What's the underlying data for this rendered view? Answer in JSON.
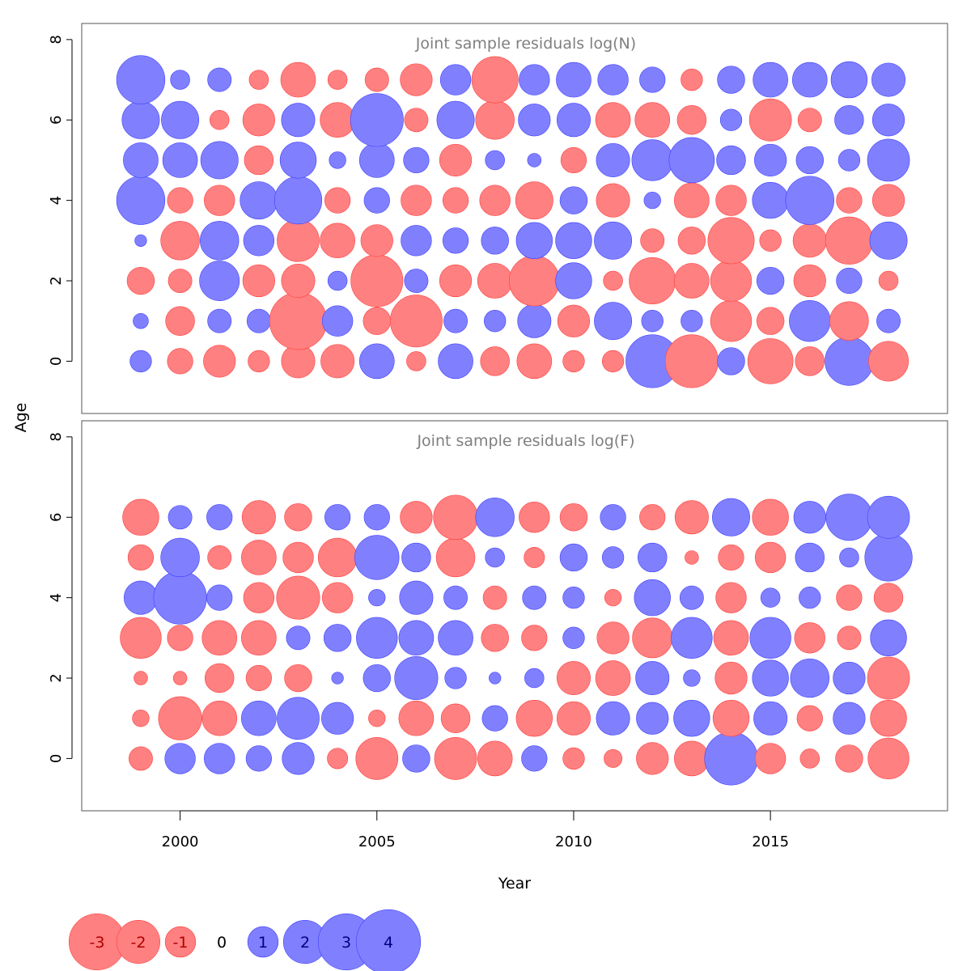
{
  "chart_data": {
    "type": "bubble",
    "xlabel": "Year",
    "ylabel": "Age",
    "x_ticks": [
      2000,
      2005,
      2010,
      2015
    ],
    "y_ticks": [
      0,
      2,
      4,
      6,
      8
    ],
    "xlim": [
      1997.5,
      2019.5
    ],
    "ylim": [
      -1.3,
      8.4
    ],
    "years": [
      1999,
      2000,
      2001,
      2002,
      2003,
      2004,
      2005,
      2006,
      2007,
      2008,
      2009,
      2010,
      2011,
      2012,
      2013,
      2014,
      2015,
      2016,
      2017,
      2018
    ],
    "colors": {
      "negative": "#ff8080",
      "positive": "#8080ff",
      "negative_edge": "#ff4040",
      "positive_edge": "#4040ff",
      "zero_label": "#000000"
    },
    "panels": [
      {
        "title": "Joint sample residuals log(N)",
        "ages": [
          0,
          1,
          2,
          3,
          4,
          5,
          6,
          7
        ],
        "residuals": [
          [
            0.5,
            -0.7,
            -1.1,
            -0.5,
            -1.2,
            -1.2,
            1.3,
            -0.4,
            1.3,
            -0.9,
            -1.3,
            -0.5,
            -0.5,
            3.0,
            -3.0,
            0.8,
            -2.2,
            -0.9,
            2.5,
            -1.7
          ],
          [
            0.25,
            -0.9,
            0.6,
            0.6,
            -3.5,
            1.0,
            -0.8,
            -2.9,
            0.6,
            0.5,
            1.2,
            -1.1,
            1.5,
            0.5,
            0.5,
            -1.8,
            -0.8,
            1.8,
            -1.6,
            0.6
          ],
          [
            -0.8,
            -0.6,
            1.7,
            -1.1,
            -1.2,
            0.4,
            -2.9,
            0.6,
            -1.1,
            -1.3,
            -2.7,
            1.4,
            -0.4,
            -2.3,
            -1.3,
            -1.8,
            0.8,
            -1.1,
            0.7,
            -0.4
          ],
          [
            0.15,
            -1.6,
            1.6,
            1.0,
            -1.9,
            -1.3,
            -1.1,
            1.0,
            0.7,
            0.8,
            1.4,
            1.4,
            1.5,
            -0.6,
            -0.8,
            -2.3,
            -0.5,
            -1.2,
            -2.4,
            1.5
          ],
          [
            2.5,
            -0.7,
            -1.0,
            1.5,
            2.4,
            -0.7,
            0.7,
            -1.0,
            -0.7,
            -1.0,
            -1.5,
            0.8,
            -1.2,
            0.3,
            -1.3,
            -1.0,
            1.4,
            2.5,
            -0.7,
            -1.1
          ],
          [
            1.3,
            1.3,
            1.5,
            -0.9,
            1.4,
            0.3,
            1.3,
            0.7,
            -1.1,
            0.4,
            0.2,
            -0.7,
            1.2,
            1.8,
            2.2,
            0.9,
            1.1,
            0.8,
            0.5,
            1.9
          ],
          [
            1.5,
            1.5,
            -0.4,
            -1.1,
            1.2,
            -1.3,
            3.0,
            -0.6,
            1.5,
            -1.6,
            1.1,
            1.2,
            -1.3,
            -1.3,
            -0.9,
            0.5,
            -1.9,
            -0.6,
            0.9,
            1.1
          ],
          [
            2.5,
            0.4,
            0.6,
            -0.4,
            -1.3,
            -0.4,
            -0.6,
            -1.1,
            1.0,
            -2.3,
            1.0,
            1.3,
            1.0,
            0.7,
            -0.5,
            0.8,
            1.3,
            1.3,
            1.4,
            1.2
          ]
        ]
      },
      {
        "title": "Joint sample residuals log(F)",
        "ages": [
          0,
          1,
          2,
          3,
          4,
          5,
          6
        ],
        "residuals": [
          [
            -0.6,
            1.0,
            1.0,
            0.7,
            1.1,
            -0.45,
            -1.9,
            0.8,
            -1.9,
            -1.3,
            0.7,
            -0.5,
            -0.35,
            -1.1,
            -1.3,
            3.0,
            -1.0,
            -0.4,
            -0.8,
            -1.8
          ],
          [
            -0.3,
            -2.0,
            -1.3,
            1.3,
            1.9,
            1.1,
            -0.3,
            -1.3,
            -0.9,
            0.7,
            -1.4,
            -1.2,
            1.2,
            1.1,
            1.4,
            -1.4,
            1.2,
            -0.7,
            1.1,
            -1.4
          ],
          [
            -0.2,
            -0.2,
            -0.9,
            -0.7,
            -0.8,
            0.15,
            0.8,
            2.0,
            0.5,
            0.15,
            0.4,
            -1.2,
            -1.3,
            1.2,
            0.3,
            -1.1,
            1.4,
            1.6,
            1.1,
            -1.9
          ],
          [
            -1.8,
            -0.7,
            -1.3,
            -1.3,
            0.6,
            0.8,
            1.8,
            1.3,
            1.3,
            -0.8,
            -0.7,
            0.5,
            -1.1,
            -1.7,
            1.8,
            -1.3,
            1.8,
            -1.0,
            -0.6,
            1.4
          ],
          [
            1.2,
            3.0,
            0.7,
            -1.0,
            -2.0,
            -1.0,
            0.3,
            1.2,
            0.6,
            -0.6,
            0.6,
            0.5,
            -0.3,
            1.4,
            0.6,
            -1.0,
            0.4,
            0.5,
            -0.7,
            -0.9
          ],
          [
            -0.7,
            1.6,
            -0.6,
            -1.3,
            -1.0,
            -1.6,
            2.1,
            0.9,
            -1.6,
            0.4,
            -0.45,
            0.8,
            0.5,
            0.9,
            -0.2,
            -0.7,
            -1.0,
            0.9,
            0.4,
            2.4
          ],
          [
            -1.4,
            0.6,
            0.7,
            -1.2,
            -0.8,
            0.7,
            0.7,
            -1.1,
            -2.1,
            1.6,
            -1.0,
            -0.8,
            0.7,
            -0.7,
            -1.2,
            1.5,
            -1.4,
            1.1,
            2.3,
            1.9
          ]
        ]
      }
    ],
    "legend": {
      "placement": "bottom-left",
      "entries": [
        {
          "label": "-3",
          "value": -3
        },
        {
          "label": "-2",
          "value": -2
        },
        {
          "label": "-1",
          "value": -1
        },
        {
          "label": "0",
          "value": 0
        },
        {
          "label": "1",
          "value": 1
        },
        {
          "label": "2",
          "value": 2
        },
        {
          "label": "3",
          "value": 3
        },
        {
          "label": "4",
          "value": 4
        }
      ]
    }
  }
}
